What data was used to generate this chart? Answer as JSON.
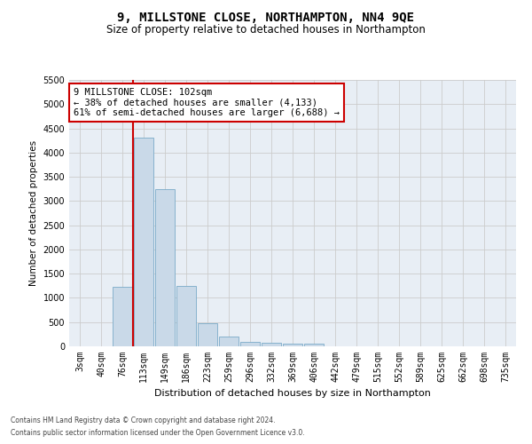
{
  "title": "9, MILLSTONE CLOSE, NORTHAMPTON, NN4 9QE",
  "subtitle": "Size of property relative to detached houses in Northampton",
  "xlabel": "Distribution of detached houses by size in Northampton",
  "ylabel": "Number of detached properties",
  "footer_line1": "Contains HM Land Registry data © Crown copyright and database right 2024.",
  "footer_line2": "Contains public sector information licensed under the Open Government Licence v3.0.",
  "categories": [
    "3sqm",
    "40sqm",
    "76sqm",
    "113sqm",
    "149sqm",
    "186sqm",
    "223sqm",
    "259sqm",
    "296sqm",
    "332sqm",
    "369sqm",
    "406sqm",
    "442sqm",
    "479sqm",
    "515sqm",
    "552sqm",
    "589sqm",
    "625sqm",
    "662sqm",
    "698sqm",
    "735sqm"
  ],
  "values": [
    0,
    0,
    1230,
    4300,
    3250,
    1250,
    475,
    200,
    100,
    75,
    50,
    50,
    0,
    0,
    0,
    0,
    0,
    0,
    0,
    0,
    0
  ],
  "bar_color": "#c9d9e8",
  "bar_edge_color": "#7aaac8",
  "vline_x_index": 3,
  "vline_color": "#cc0000",
  "annotation_text": "9 MILLSTONE CLOSE: 102sqm\n← 38% of detached houses are smaller (4,133)\n61% of semi-detached houses are larger (6,688) →",
  "annotation_box_color": "#ffffff",
  "annotation_box_edge_color": "#cc0000",
  "ylim": [
    0,
    5500
  ],
  "yticks": [
    0,
    500,
    1000,
    1500,
    2000,
    2500,
    3000,
    3500,
    4000,
    4500,
    5000,
    5500
  ],
  "grid_color": "#cccccc",
  "bg_color": "#e8eef5",
  "title_fontsize": 10,
  "subtitle_fontsize": 8.5,
  "tick_fontsize": 7,
  "annotation_fontsize": 7.5
}
